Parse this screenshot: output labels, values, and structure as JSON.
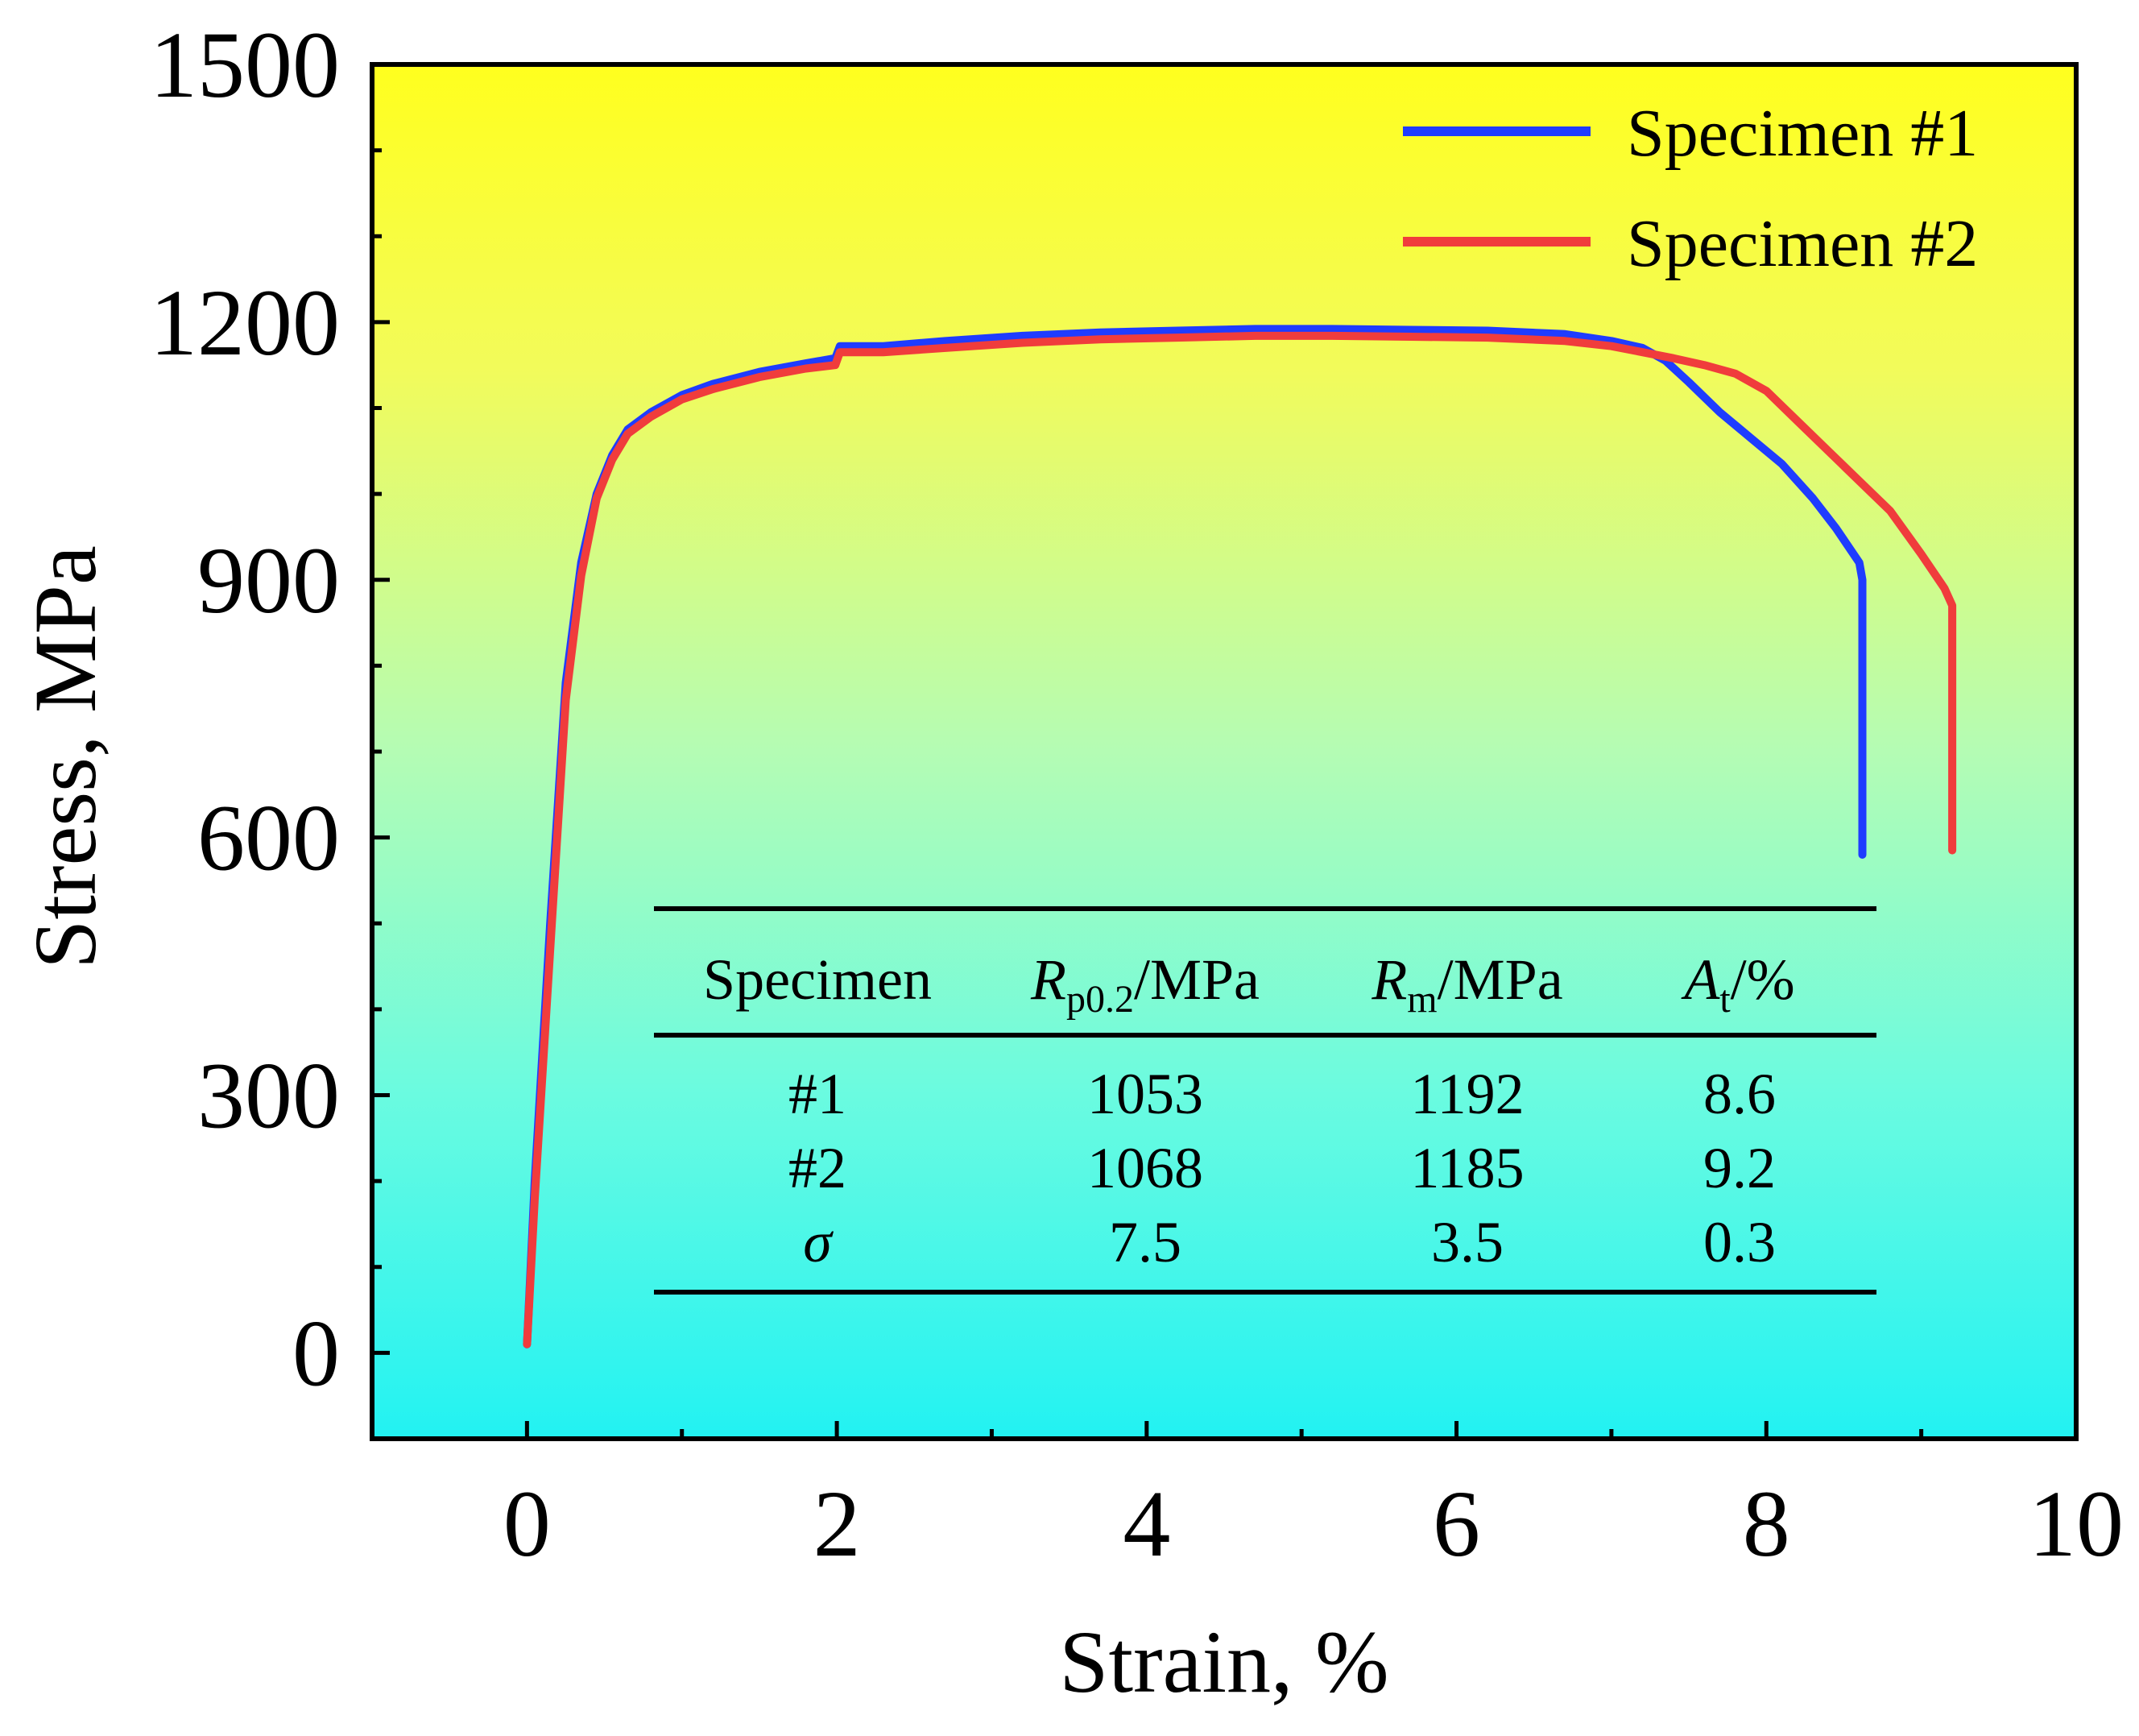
{
  "chart_data": {
    "type": "line",
    "xlabel": "Strain, %",
    "ylabel": "Stress, MPa",
    "xlim": [
      -1,
      10
    ],
    "ylim": [
      -100,
      1500
    ],
    "xticks": [
      0,
      2,
      4,
      6,
      8,
      10
    ],
    "xtick_labels": [
      "0",
      "2",
      "4",
      "6",
      "8",
      "10"
    ],
    "yticks": [
      0,
      300,
      600,
      900,
      1200,
      1500
    ],
    "ytick_labels": [
      "0",
      "300",
      "600",
      "900",
      "1200",
      "1500"
    ],
    "background": "vertical gradient yellow (top) to cyan (bottom)",
    "legend_position": "top-right",
    "series": [
      {
        "name": "Specimen #1",
        "color": "#1f3cff",
        "x": [
          0,
          0.05,
          0.15,
          0.25,
          0.35,
          0.45,
          0.55,
          0.65,
          0.8,
          1.0,
          1.2,
          1.5,
          1.8,
          1.99,
          2.02,
          2.3,
          2.7,
          3.2,
          3.7,
          4.2,
          4.7,
          5.2,
          5.7,
          6.2,
          6.7,
          7.0,
          7.2,
          7.35,
          7.5,
          7.7,
          7.9,
          8.1,
          8.3,
          8.45,
          8.6,
          8.62,
          8.62
        ],
        "y": [
          10,
          200,
          500,
          780,
          920,
          1000,
          1045,
          1075,
          1095,
          1115,
          1128,
          1142,
          1152,
          1158,
          1172,
          1172,
          1178,
          1184,
          1188,
          1190,
          1192,
          1192,
          1191,
          1190,
          1186,
          1178,
          1170,
          1155,
          1130,
          1095,
          1065,
          1035,
          995,
          960,
          920,
          900,
          580
        ]
      },
      {
        "name": "Specimen #2",
        "color": "#f03c3c",
        "x": [
          0,
          0.05,
          0.15,
          0.25,
          0.35,
          0.45,
          0.55,
          0.65,
          0.8,
          1.0,
          1.2,
          1.5,
          1.8,
          1.99,
          2.02,
          2.3,
          2.7,
          3.2,
          3.7,
          4.2,
          4.7,
          5.2,
          5.7,
          6.2,
          6.7,
          7.0,
          7.2,
          7.4,
          7.6,
          7.8,
          8.0,
          8.2,
          8.4,
          8.6,
          8.8,
          9.0,
          9.15,
          9.2,
          9.2
        ],
        "y": [
          10,
          180,
          470,
          760,
          905,
          995,
          1040,
          1070,
          1090,
          1110,
          1122,
          1136,
          1146,
          1150,
          1165,
          1165,
          1170,
          1176,
          1180,
          1182,
          1184,
          1184,
          1183,
          1182,
          1178,
          1172,
          1165,
          1158,
          1150,
          1140,
          1120,
          1085,
          1050,
          1015,
          980,
          930,
          890,
          870,
          585
        ]
      }
    ],
    "table": {
      "headers": [
        {
          "main": "Specimen",
          "italic": false
        },
        {
          "main": "R",
          "sub": "p0.2",
          "unit": "/MPa",
          "italic": true
        },
        {
          "main": "R",
          "sub": "m",
          "unit": "/MPa",
          "italic": true
        },
        {
          "main": "A",
          "sub": "t",
          "unit": "/%",
          "italic": true
        }
      ],
      "rows": [
        [
          "#1",
          "1053",
          "1192",
          "8.6"
        ],
        [
          "#2",
          "1068",
          "1185",
          "9.2"
        ],
        [
          "σ",
          "7.5",
          "3.5",
          "0.3"
        ]
      ]
    }
  }
}
